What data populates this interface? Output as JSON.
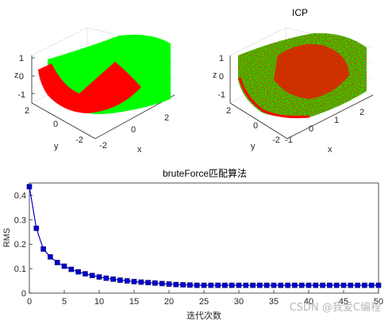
{
  "surface_plots": [
    {
      "title": "",
      "xlabel": "x",
      "ylabel": "y",
      "zlabel": "z",
      "xticks": [
        "-2",
        "0",
        "2"
      ],
      "yticks": [
        "2",
        "0",
        "-2"
      ],
      "zticks": [
        "1",
        "0",
        "-1"
      ],
      "colors": {
        "target": "#00ff00",
        "source": "#ff0000"
      }
    },
    {
      "title": "ICP",
      "xlabel": "x",
      "ylabel": "y",
      "zlabel": "z",
      "xticks": [
        "-1",
        "0",
        "1",
        "2"
      ],
      "yticks": [
        "2",
        "0",
        "-2"
      ],
      "zticks": [
        "1",
        "0",
        "-1"
      ],
      "colors": {
        "target": "#00ff00",
        "source": "#ff0000"
      }
    }
  ],
  "chart_data": {
    "type": "line",
    "title": "bruteForce匹配算法",
    "xlabel": "迭代次数",
    "ylabel": "RMS",
    "xlim": [
      0,
      50
    ],
    "ylim": [
      0,
      0.45
    ],
    "xticks": [
      0,
      5,
      10,
      15,
      20,
      25,
      30,
      35,
      40,
      45,
      50
    ],
    "yticks": [
      0,
      0.1,
      0.2,
      0.3,
      0.4
    ],
    "grid": false,
    "marker": "square",
    "color": "#0000cc",
    "series": [
      {
        "x": [
          0,
          1,
          2,
          3,
          4,
          5,
          6,
          7,
          8,
          9,
          10,
          11,
          12,
          13,
          14,
          15,
          16,
          17,
          18,
          19,
          20,
          21,
          22,
          23,
          24,
          25,
          26,
          27,
          28,
          29,
          30,
          31,
          32,
          33,
          34,
          35,
          36,
          37,
          38,
          39,
          40,
          41,
          42,
          43,
          44,
          45,
          46,
          47,
          48,
          49,
          50
        ],
        "values": [
          0.435,
          0.265,
          0.18,
          0.148,
          0.125,
          0.11,
          0.097,
          0.087,
          0.079,
          0.072,
          0.066,
          0.061,
          0.057,
          0.053,
          0.05,
          0.047,
          0.045,
          0.043,
          0.041,
          0.039,
          0.037,
          0.035,
          0.034,
          0.033,
          0.032,
          0.032,
          0.032,
          0.032,
          0.032,
          0.032,
          0.032,
          0.032,
          0.032,
          0.032,
          0.032,
          0.032,
          0.032,
          0.032,
          0.032,
          0.032,
          0.032,
          0.032,
          0.032,
          0.032,
          0.032,
          0.032,
          0.032,
          0.032,
          0.032,
          0.032,
          0.032
        ]
      }
    ]
  },
  "watermark": "CSDN @我爱C编程"
}
